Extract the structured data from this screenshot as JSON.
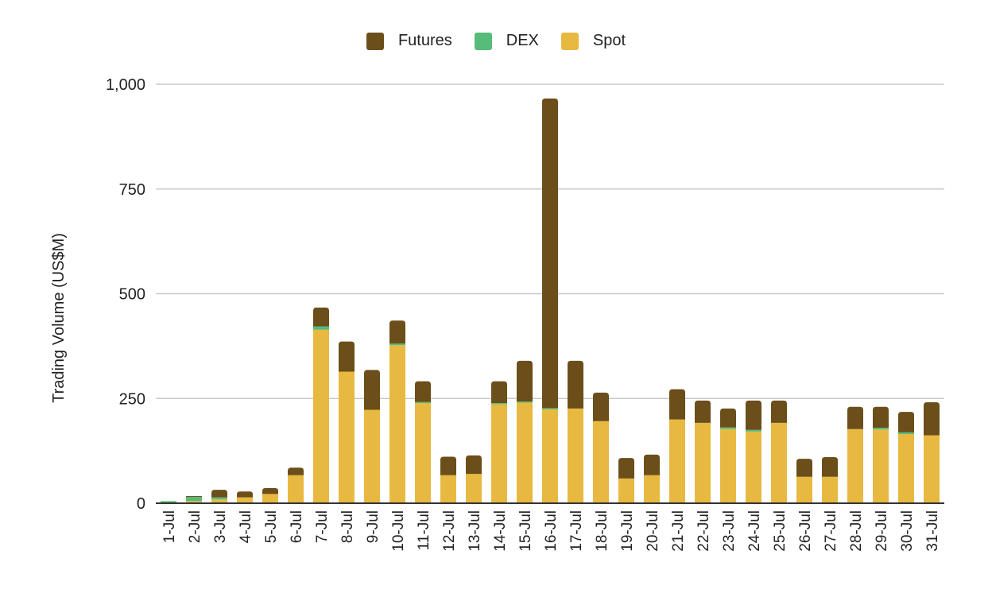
{
  "chart_data": {
    "type": "bar",
    "stacked": true,
    "title": "",
    "xlabel": "",
    "ylabel": "Trading Volume (US$M)",
    "ylim": [
      0,
      1000
    ],
    "yticks": [
      0,
      250,
      500,
      750,
      1000
    ],
    "ytick_labels": [
      "0",
      "250",
      "500",
      "750",
      "1,000"
    ],
    "grid": true,
    "legend_position": "top",
    "categories": [
      "1-Jul",
      "2-Jul",
      "3-Jul",
      "4-Jul",
      "5-Jul",
      "6-Jul",
      "7-Jul",
      "8-Jul",
      "9-Jul",
      "10-Jul",
      "11-Jul",
      "12-Jul",
      "13-Jul",
      "14-Jul",
      "15-Jul",
      "16-Jul",
      "17-Jul",
      "18-Jul",
      "19-Jul",
      "20-Jul",
      "21-Jul",
      "22-Jul",
      "23-Jul",
      "24-Jul",
      "25-Jul",
      "26-Jul",
      "27-Jul",
      "28-Jul",
      "29-Jul",
      "30-Jul",
      "31-Jul"
    ],
    "series": [
      {
        "name": "Spot",
        "color": "#E8B940",
        "values": [
          0,
          5,
          9,
          14,
          22,
          67,
          414,
          314,
          223,
          377,
          239,
          67,
          70,
          236,
          240,
          224,
          226,
          196,
          59,
          67,
          200,
          192,
          177,
          171,
          192,
          63,
          63,
          177,
          176,
          165,
          162
        ]
      },
      {
        "name": "DEX",
        "color": "#57BB7A",
        "values": [
          5,
          10,
          5,
          0,
          0,
          0,
          8,
          0,
          0,
          4,
          3,
          0,
          0,
          3,
          3,
          3,
          0,
          0,
          0,
          0,
          0,
          0,
          4,
          4,
          0,
          0,
          0,
          0,
          4,
          4,
          0
        ]
      },
      {
        "name": "Futures",
        "color": "#6B4E1A",
        "values": [
          0,
          2,
          18,
          14,
          14,
          18,
          45,
          72,
          95,
          55,
          49,
          44,
          44,
          52,
          97,
          739,
          114,
          68,
          49,
          49,
          72,
          53,
          45,
          70,
          53,
          43,
          47,
          53,
          50,
          49,
          79
        ]
      }
    ]
  },
  "legend": {
    "items": [
      {
        "label": "Futures",
        "color": "#6B4E1A"
      },
      {
        "label": "DEX",
        "color": "#57BB7A"
      },
      {
        "label": "Spot",
        "color": "#E8B940"
      }
    ]
  }
}
